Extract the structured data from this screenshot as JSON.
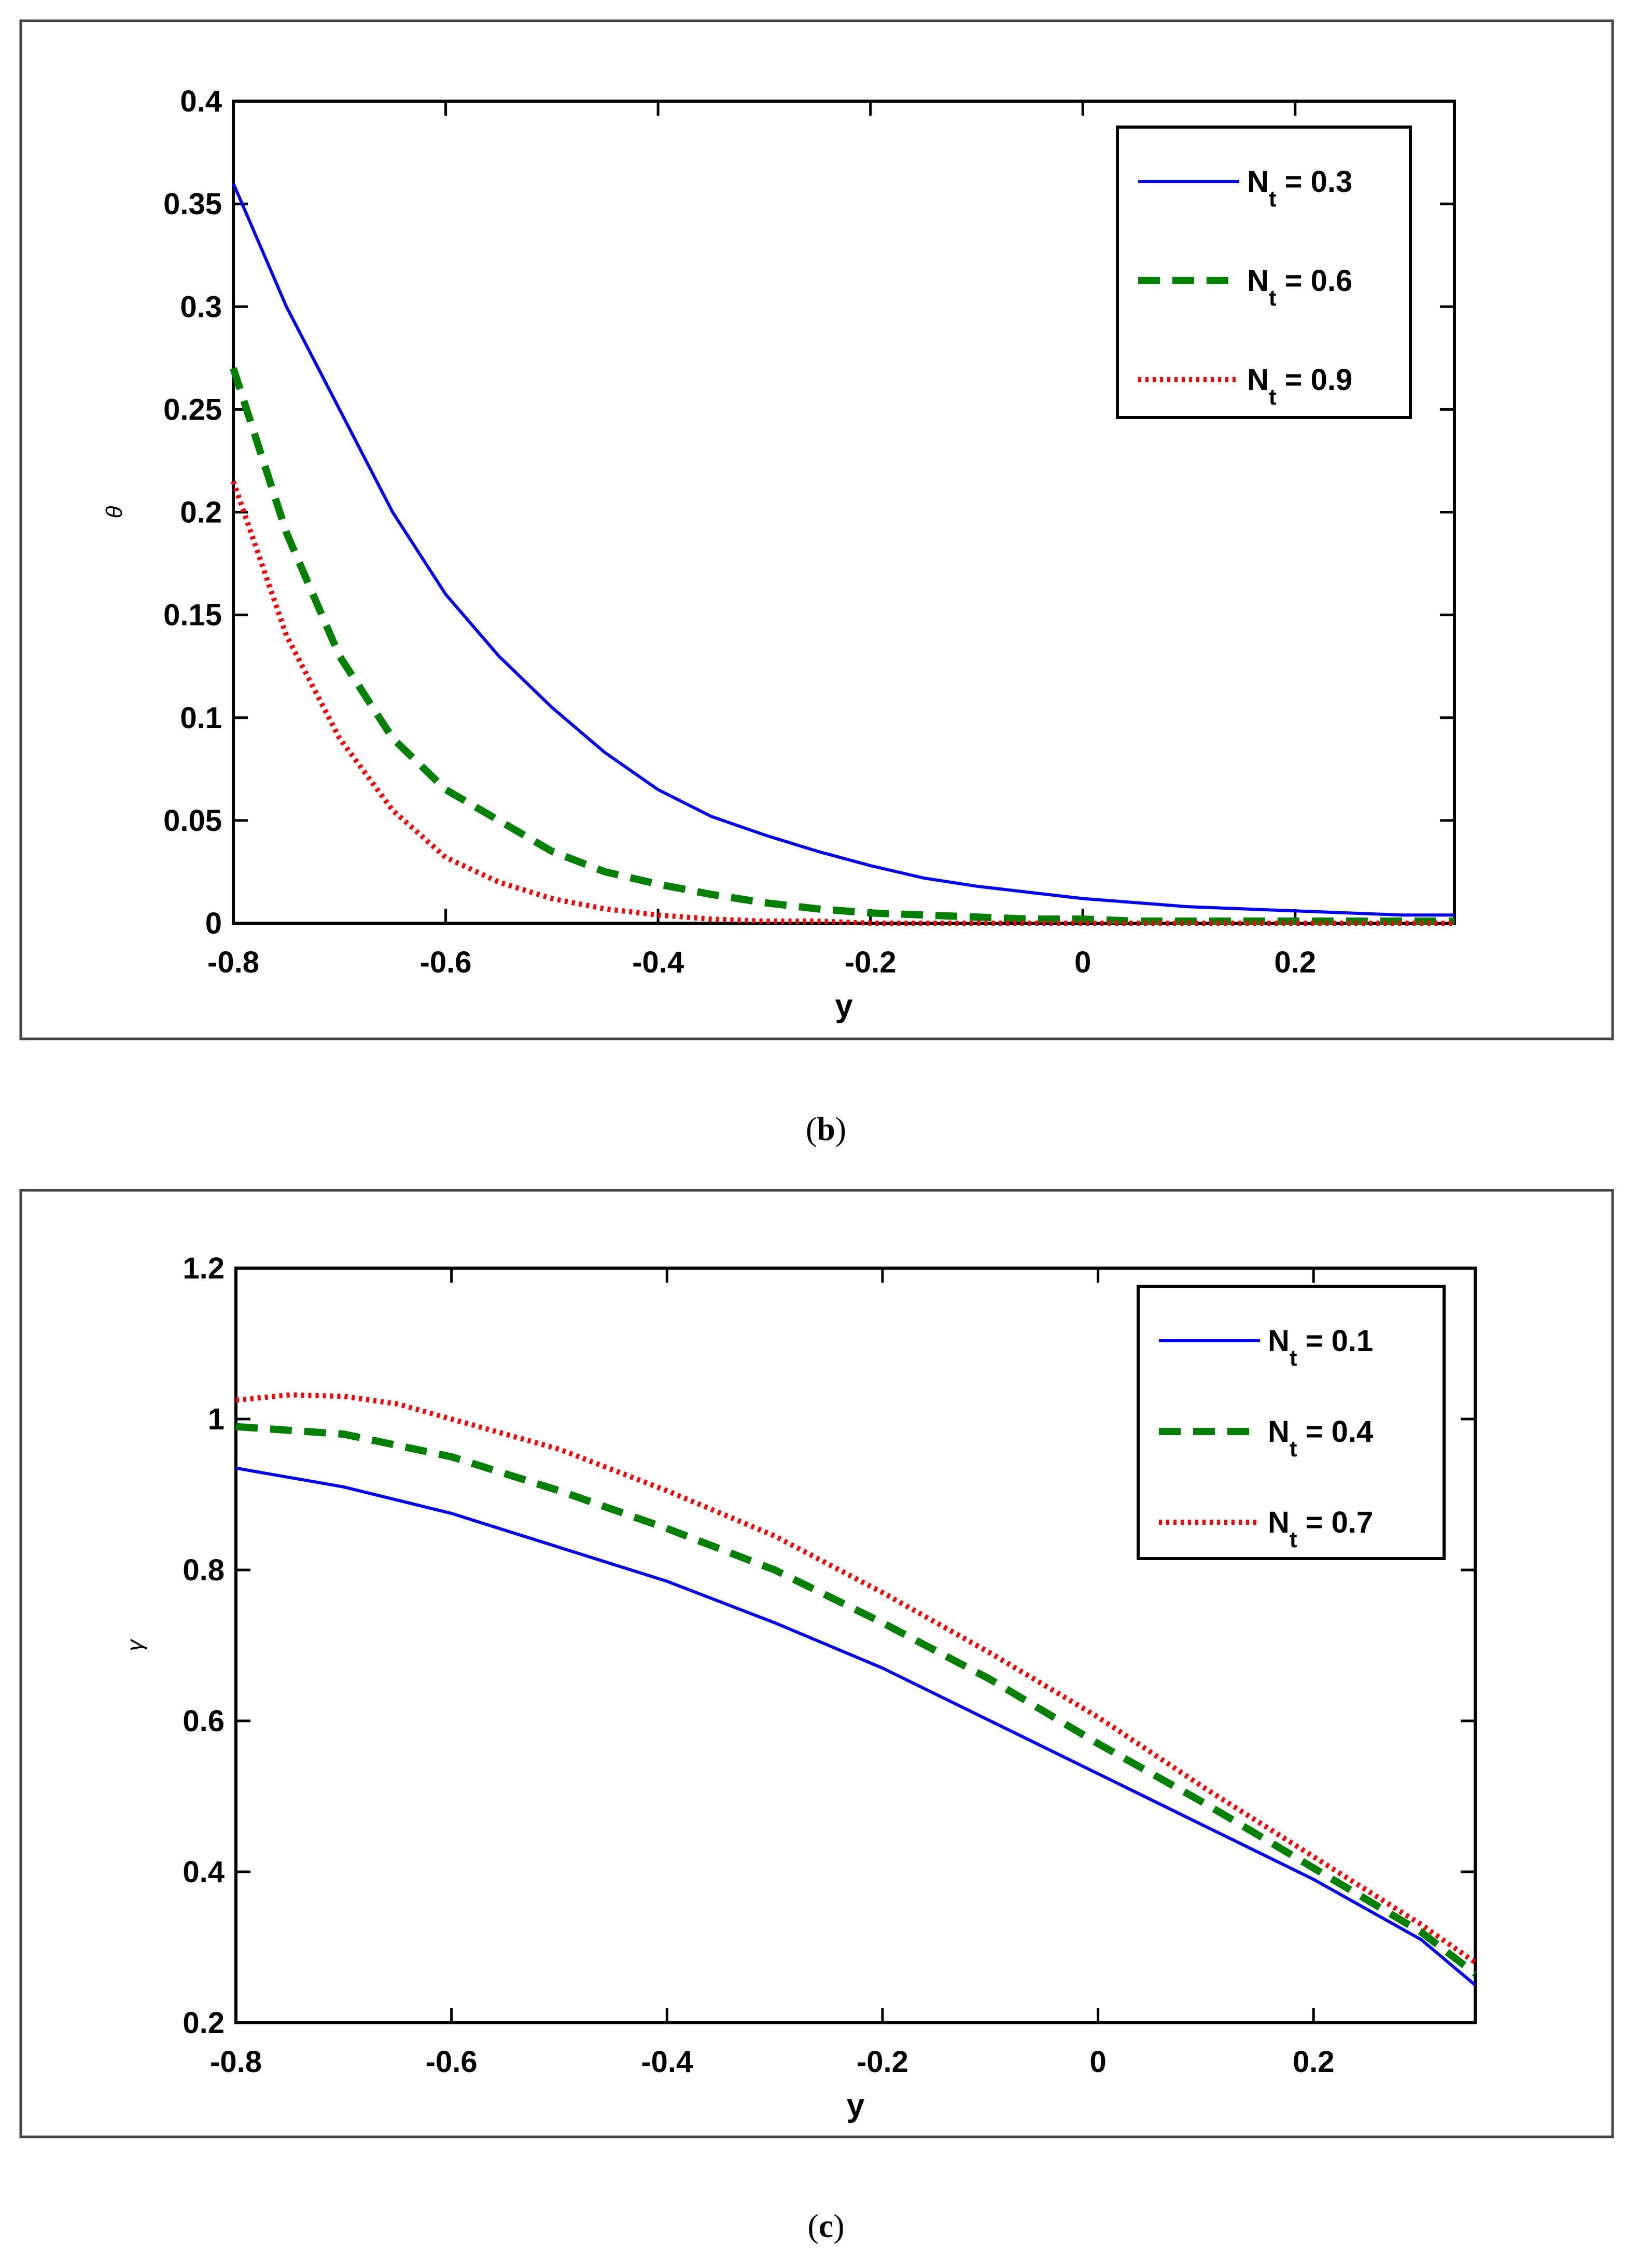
{
  "figure": {
    "caption_b_letter": "b",
    "caption_c_letter": "c"
  },
  "chart_data": [
    {
      "type": "line",
      "panel": "b",
      "xlabel": "y",
      "ylabel": "θ",
      "xlim": [
        -0.8,
        0.35
      ],
      "ylim": [
        0,
        0.4
      ],
      "xticks": [
        "-0.8",
        "-0.6",
        "-0.4",
        "-0.2",
        "0",
        "0.2"
      ],
      "yticks": [
        "0",
        "0.05",
        "0.1",
        "0.15",
        "0.2",
        "0.25",
        "0.3",
        "0.35",
        "0.4"
      ],
      "legend_position": "top-right",
      "series": [
        {
          "name": "N_t = 0.3",
          "sym": "N",
          "sub": "t",
          "val": " = 0.3",
          "color": "#0000ff",
          "style": "solid",
          "x": [
            -0.8,
            -0.75,
            -0.7,
            -0.65,
            -0.6,
            -0.55,
            -0.5,
            -0.45,
            -0.4,
            -0.35,
            -0.3,
            -0.25,
            -0.2,
            -0.15,
            -0.1,
            -0.05,
            0,
            0.05,
            0.1,
            0.15,
            0.2,
            0.25,
            0.3,
            0.35
          ],
          "y": [
            0.36,
            0.3,
            0.25,
            0.2,
            0.16,
            0.13,
            0.105,
            0.083,
            0.065,
            0.052,
            0.043,
            0.035,
            0.028,
            0.022,
            0.018,
            0.015,
            0.012,
            0.01,
            0.008,
            0.007,
            0.006,
            0.005,
            0.004,
            0.004
          ]
        },
        {
          "name": "N_t = 0.6",
          "sym": "N",
          "sub": "t",
          "val": " = 0.6",
          "color": "#008000",
          "style": "dashed",
          "x": [
            -0.8,
            -0.75,
            -0.7,
            -0.65,
            -0.6,
            -0.55,
            -0.5,
            -0.45,
            -0.4,
            -0.35,
            -0.3,
            -0.25,
            -0.2,
            -0.15,
            -0.1,
            -0.05,
            0,
            0.05,
            0.1,
            0.2,
            0.35
          ],
          "y": [
            0.27,
            0.19,
            0.13,
            0.09,
            0.065,
            0.05,
            0.035,
            0.025,
            0.019,
            0.014,
            0.01,
            0.007,
            0.005,
            0.004,
            0.003,
            0.002,
            0.002,
            0.001,
            0.001,
            0.001,
            0.001
          ]
        },
        {
          "name": "N_t = 0.9",
          "sym": "N",
          "sub": "t",
          "val": " = 0.9",
          "color": "#ff0000",
          "style": "dotted",
          "x": [
            -0.8,
            -0.75,
            -0.7,
            -0.65,
            -0.6,
            -0.55,
            -0.5,
            -0.45,
            -0.4,
            -0.35,
            -0.3,
            -0.25,
            -0.2,
            -0.1,
            0,
            0.1,
            0.2,
            0.35
          ],
          "y": [
            0.215,
            0.14,
            0.09,
            0.055,
            0.032,
            0.02,
            0.012,
            0.007,
            0.004,
            0.002,
            0.001,
            0.001,
            0,
            0,
            0,
            0,
            0,
            0
          ]
        }
      ]
    },
    {
      "type": "line",
      "panel": "c",
      "xlabel": "y",
      "ylabel": "γ",
      "xlim": [
        -0.8,
        0.35
      ],
      "ylim": [
        0.2,
        1.2
      ],
      "xticks": [
        "-0.8",
        "-0.6",
        "-0.4",
        "-0.2",
        "0",
        "0.2"
      ],
      "yticks": [
        "0.2",
        "0.4",
        "0.6",
        "0.8",
        "1",
        "1.2"
      ],
      "legend_position": "top-right",
      "series": [
        {
          "name": "N_t = 0.1",
          "sym": "N",
          "sub": "t",
          "val": " = 0.1",
          "color": "#0000ff",
          "style": "solid",
          "x": [
            -0.8,
            -0.7,
            -0.6,
            -0.5,
            -0.4,
            -0.3,
            -0.2,
            -0.1,
            0,
            0.1,
            0.2,
            0.3,
            0.35
          ],
          "y": [
            0.935,
            0.91,
            0.875,
            0.83,
            0.785,
            0.73,
            0.67,
            0.6,
            0.53,
            0.46,
            0.39,
            0.31,
            0.25
          ]
        },
        {
          "name": "N_t = 0.4",
          "sym": "N",
          "sub": "t",
          "val": " = 0.4",
          "color": "#008000",
          "style": "dashed",
          "x": [
            -0.8,
            -0.75,
            -0.7,
            -0.6,
            -0.5,
            -0.4,
            -0.3,
            -0.2,
            -0.1,
            0,
            0.1,
            0.2,
            0.3,
            0.35
          ],
          "y": [
            0.99,
            0.985,
            0.98,
            0.95,
            0.905,
            0.855,
            0.8,
            0.73,
            0.655,
            0.57,
            0.49,
            0.405,
            0.32,
            0.265
          ]
        },
        {
          "name": "N_t = 0.7",
          "sym": "N",
          "sub": "t",
          "val": " = 0.7",
          "color": "#ff0000",
          "style": "dotted",
          "x": [
            -0.8,
            -0.75,
            -0.7,
            -0.65,
            -0.6,
            -0.5,
            -0.4,
            -0.3,
            -0.2,
            -0.1,
            0,
            0.1,
            0.2,
            0.3,
            0.35
          ],
          "y": [
            1.025,
            1.032,
            1.03,
            1.02,
            1.0,
            0.96,
            0.905,
            0.845,
            0.77,
            0.69,
            0.605,
            0.51,
            0.42,
            0.33,
            0.28
          ]
        }
      ]
    }
  ]
}
